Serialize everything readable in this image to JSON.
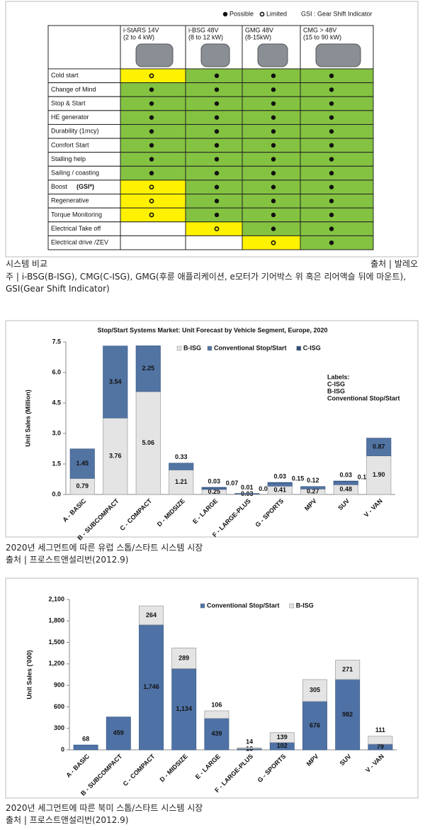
{
  "legend": {
    "items": [
      "Possible",
      "Limited"
    ],
    "gsi": "GSI : Gear Shift Indicator"
  },
  "table": {
    "columns": [
      {
        "name": "i-StARS 14V",
        "power": "(2 to 4 kW)"
      },
      {
        "name": "i-BSG 48V",
        "power": "(8 to 12 kW)"
      },
      {
        "name": "GMG 48V",
        "power": "(8-15kW)"
      },
      {
        "name": "CMG > 48V",
        "power": "(15 to 90 kW)"
      }
    ],
    "rows": [
      {
        "label": "Cold start",
        "cells": [
          "Limited",
          "Possible",
          "Possible",
          "Possible"
        ]
      },
      {
        "label": "Change of Mind",
        "cells": [
          "Possible",
          "Possible",
          "Possible",
          "Possible"
        ]
      },
      {
        "label": "Stop & Start",
        "cells": [
          "Possible",
          "Possible",
          "Possible",
          "Possible"
        ]
      },
      {
        "label": "HE generator",
        "cells": [
          "Possible",
          "Possible",
          "Possible",
          "Possible"
        ]
      },
      {
        "label": "Durability (1mcy)",
        "cells": [
          "Possible",
          "Possible",
          "Possible",
          "Possible"
        ]
      },
      {
        "label": "Comfort Start",
        "cells": [
          "Possible",
          "Possible",
          "Possible",
          "Possible"
        ]
      },
      {
        "label": "Stalling help",
        "cells": [
          "Possible",
          "Possible",
          "Possible",
          "Possible"
        ]
      },
      {
        "label": "Sailing / coasting",
        "cells": [
          "Possible",
          "Possible",
          "Possible",
          "Possible"
        ]
      },
      {
        "label": "Boost",
        "note": "(GSI*)",
        "cells": [
          "Limited",
          "Possible",
          "Possible",
          "Possible"
        ]
      },
      {
        "label": "Regenerative",
        "cells": [
          "Limited",
          "Possible",
          "Possible",
          "Possible"
        ]
      },
      {
        "label": "Torque Monitoring",
        "cells": [
          "Limited",
          "Possible",
          "Possible",
          "Possible"
        ]
      },
      {
        "label": "Electrical Take off",
        "cells": [
          null,
          "Limited",
          "Possible",
          "Possible"
        ]
      },
      {
        "label": "Electrical drive /ZEV",
        "cells": [
          null,
          null,
          "Limited",
          "Possible"
        ]
      }
    ]
  },
  "caption": {
    "title": "시스템 비교",
    "source": "출처 | 발레오",
    "note": "주 | i-BSG(B-ISG), CMG(C-ISG), GMG(후륜 애플리케이션, e모터가 기어박스 위 혹은 리어액슬 뒤에 마운트), GSI(Gear Shift Indicator)"
  },
  "chart_data": [
    {
      "type": "bar",
      "title": "Stop/Start Systems Market: Unit Forecast by Vehicle Segment, Europe, 2020",
      "y_label": "Unit Sales (Million)",
      "labels_title": "Labels:",
      "categories": [
        "A - BASIC",
        "B - SUBCOMPACT",
        "C - COMPACT",
        "D - MIDSIZE",
        "E - LARGE",
        "F - LARGE-PLUS",
        "G - SPORTS",
        "MPV",
        "SUV",
        "V - VAN"
      ],
      "ylim": [
        0,
        7.5
      ],
      "yticks": [
        {
          "value": 0,
          "label": "0.0"
        },
        1.5,
        {
          "value": 3,
          "label": "3.0"
        },
        4.5,
        {
          "value": 6,
          "label": "6.0"
        },
        7.5
      ],
      "grid": false,
      "series": [
        {
          "name": "B-ISG",
          "color": "#e4e4e4",
          "label_color": "#2e6fb8",
          "values": [
            0.79,
            3.76,
            5.06,
            1.21,
            0.25,
            0.03,
            0.41,
            0.27,
            0.48,
            1.9
          ],
          "value_labels": [
            "0.79",
            "3.76",
            "5.06",
            "1.21",
            "0.25",
            "0.03",
            "0.41",
            "0.27",
            "0.48",
            "1.90"
          ]
        },
        {
          "name": "Conventional Stop/Start",
          "color": "#5274a3",
          "label_color": "#000000",
          "values": [
            1.45,
            3.54,
            2.25,
            0.33,
            0.07,
            0.01,
            0.15,
            0.12,
            0.15,
            0.87
          ]
        },
        {
          "name": "C-ISG",
          "color": "#304d7c",
          "label_color": "#d42020",
          "values": [
            null,
            null,
            null,
            null,
            0.03,
            0.01,
            0.03,
            null,
            0.03,
            null
          ]
        }
      ]
    },
    {
      "type": "bar",
      "y_label": "Unit Sales ('000)",
      "categories": [
        "A - BASIC",
        "B - SUBCOMPACT",
        "C - COMPACT",
        "D - MIDSIZE",
        "E - LARGE",
        "F - LARGE-PLUS",
        "G - SPORTS",
        "MPV",
        "SUV",
        "V - VAN"
      ],
      "ylim": [
        0,
        2100
      ],
      "yticks": [
        0,
        300,
        600,
        900,
        {
          "value": 1200,
          "label": "1,200"
        },
        {
          "value": 1500,
          "label": "1,500"
        },
        {
          "value": 1800,
          "label": "1,800"
        },
        {
          "value": 2100,
          "label": "2,100"
        }
      ],
      "grid": false,
      "series": [
        {
          "name": "Conventional Stop/Start",
          "color": "#4f72a6",
          "values": [
            68,
            459,
            1746,
            1134,
            439,
            16,
            102,
            676,
            982,
            79
          ],
          "value_labels": [
            "68",
            "459",
            "1,746",
            "1,134",
            "439",
            "16",
            "102",
            "676",
            "982",
            "79"
          ]
        },
        {
          "name": "B-ISG",
          "color": "#e4e4e4",
          "values": [
            null,
            null,
            264,
            289,
            106,
            14,
            139,
            305,
            271,
            111
          ]
        }
      ]
    }
  ],
  "chart_captions": [
    {
      "title": "2020년 세그먼트에 따른 유럽 스톱/스타트 시스템 시장",
      "source": "출처 | 프로스트앤설리번(2012.9)"
    },
    {
      "title": "2020년 세그먼트에 따른 북미 스톱/스타트 시스템 시장",
      "source": "출처 | 프로스트앤설리번(2012.9)"
    }
  ]
}
